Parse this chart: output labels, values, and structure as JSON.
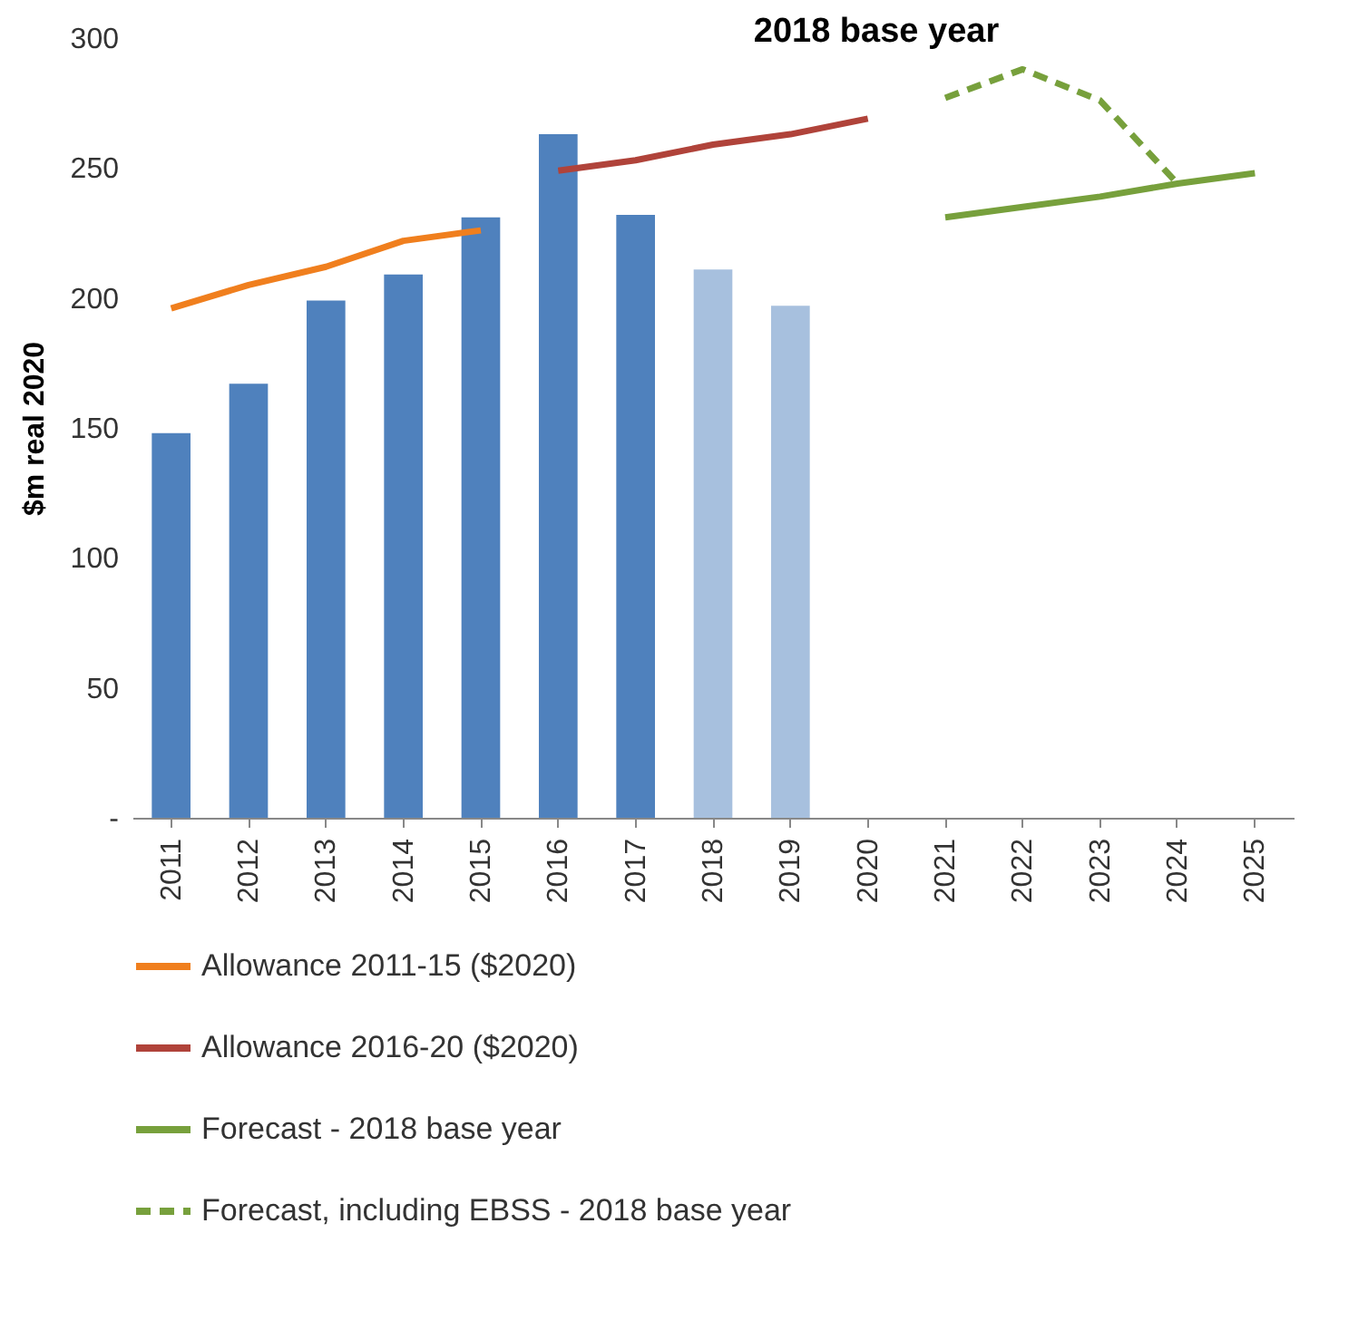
{
  "chart_data": {
    "type": "bar",
    "ylabel": "$m real 2020",
    "annotations": [
      "2018 base year"
    ],
    "categories": [
      "2011",
      "2012",
      "2013",
      "2014",
      "2015",
      "2016",
      "2017",
      "2018",
      "2019",
      "2020",
      "2021",
      "2022",
      "2023",
      "2024",
      "2025"
    ],
    "series": [
      {
        "colors": [
          "#4f81bd",
          "#4f81bd",
          "#4f81bd",
          "#4f81bd",
          "#4f81bd",
          "#4f81bd",
          "#4f81bd",
          "#a7c0de",
          "#a7c0de",
          null,
          null,
          null,
          null,
          null,
          null
        ],
        "values": [
          148,
          167,
          199,
          209,
          231,
          263,
          232,
          211,
          197,
          null,
          null,
          null,
          null,
          null,
          null
        ]
      },
      {
        "type": "line",
        "name": "Allowance 2011-15 ($2020)",
        "color": "#f07f1e",
        "line_style": "solid",
        "values": [
          196,
          205,
          212,
          222,
          226,
          null,
          null,
          null,
          null,
          null,
          null,
          null,
          null,
          null,
          null
        ]
      },
      {
        "type": "line",
        "name": "Allowance 2016-20 ($2020)",
        "color": "#b0433a",
        "line_style": "solid",
        "values": [
          null,
          null,
          null,
          null,
          null,
          249,
          253,
          259,
          263,
          269,
          null,
          null,
          null,
          null,
          null
        ]
      },
      {
        "type": "line",
        "name": "Forecast - 2018 base year",
        "color": "#77a03c",
        "line_style": "solid",
        "values": [
          null,
          null,
          null,
          null,
          null,
          null,
          null,
          null,
          null,
          null,
          231,
          235,
          239,
          244,
          248
        ]
      },
      {
        "type": "line",
        "name": "Forecast, including EBSS - 2018 base year",
        "color": "#77a03c",
        "line_style": "dashed",
        "values": [
          null,
          null,
          null,
          null,
          null,
          null,
          null,
          null,
          null,
          null,
          277,
          288,
          276,
          244,
          null
        ]
      }
    ],
    "ylim": [
      0,
      300
    ],
    "yticks": [
      {
        "value": 0,
        "label": "-"
      },
      50,
      100,
      150,
      200,
      250,
      300
    ],
    "grid": false,
    "legend": "bottom"
  }
}
